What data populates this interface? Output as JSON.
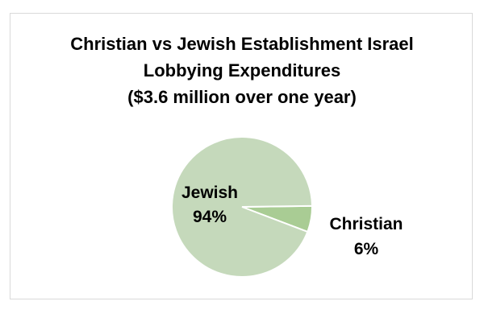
{
  "chart_data": {
    "type": "pie",
    "title_lines": [
      "Christian vs Jewish Establishment Israel",
      "Lobbying Expenditures",
      "($3.6 million over one year)"
    ],
    "slices": [
      {
        "label": "Jewish",
        "value": 94,
        "value_label": "94%",
        "color": "#c5d9bb"
      },
      {
        "label": "Christian",
        "value": 6,
        "value_label": "6%",
        "color": "#a9cc94"
      }
    ],
    "legend": "none",
    "slice_border_color": "#ffffff"
  }
}
